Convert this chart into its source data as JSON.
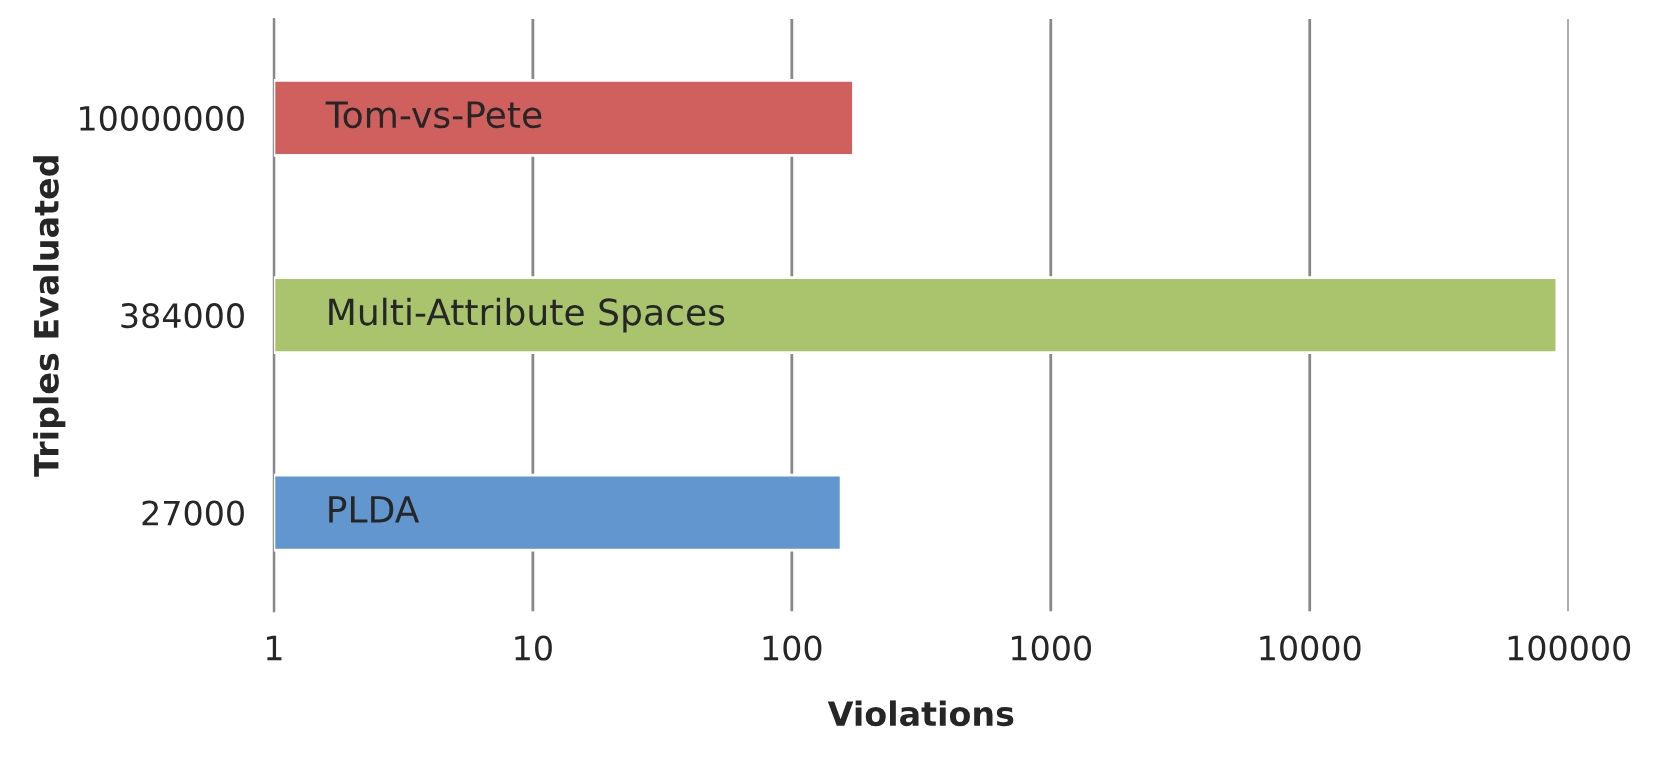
{
  "chart_data": {
    "type": "bar",
    "orientation": "horizontal",
    "xlabel": "Violations",
    "ylabel": "Triples Evaluated",
    "categories": [
      "10000000",
      "384000",
      "27000"
    ],
    "values": [
      173,
      90000,
      155
    ],
    "colors": [
      "#d0605e",
      "#a9c46d",
      "#6196cf"
    ],
    "log": "x",
    "xlim": [
      1,
      100000
    ],
    "xticks": [
      1,
      10,
      100,
      1000,
      10000,
      100000
    ],
    "grid": "x",
    "annotations": [
      "Tom-vs-Pete",
      "Multi-Attribute Spaces",
      "PLDA"
    ]
  }
}
